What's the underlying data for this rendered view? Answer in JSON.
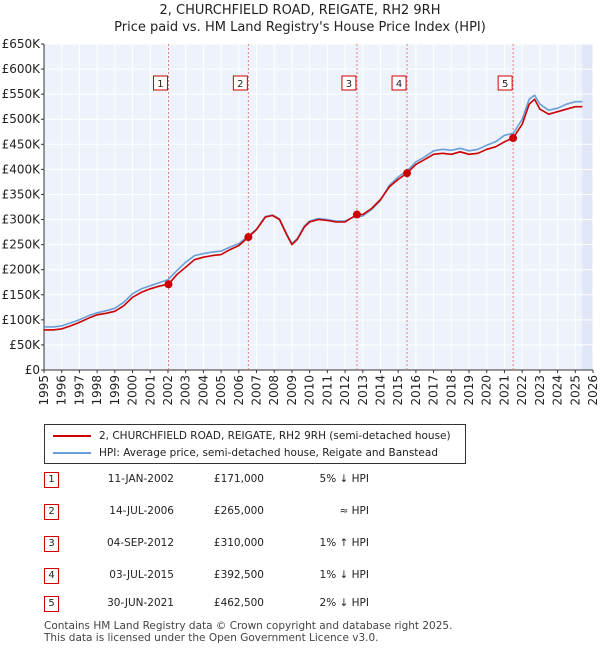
{
  "header": {
    "title_line1": "2, CHURCHFIELD ROAD, REIGATE, RH2 9RH",
    "title_line2": "Price paid vs. HM Land Registry's House Price Index (HPI)"
  },
  "colors": {
    "price_line": "#cc0000",
    "hpi_line": "#6a9fd8",
    "plot_bg": "#eef2fa",
    "shade": "#dfe6f5",
    "marker_border": "#cc0000",
    "vline": "#e08080"
  },
  "chart_data": {
    "type": "line",
    "title": "2, CHURCHFIELD ROAD, REIGATE, RH2 9RH",
    "subtitle": "Price paid vs. HM Land Registry's House Price Index (HPI)",
    "xlim": [
      1995,
      2026
    ],
    "ylim": [
      0,
      650000
    ],
    "x_ticks": [
      "1995",
      "1996",
      "1997",
      "1998",
      "1999",
      "2000",
      "2001",
      "2002",
      "2003",
      "2004",
      "2005",
      "2006",
      "2007",
      "2008",
      "2009",
      "2010",
      "2011",
      "2012",
      "2013",
      "2014",
      "2015",
      "2016",
      "2017",
      "2018",
      "2019",
      "2020",
      "2021",
      "2022",
      "2023",
      "2024",
      "2025",
      "2026"
    ],
    "y_ticks": [
      {
        "value": 0,
        "label": "£0"
      },
      {
        "value": 50000,
        "label": "£50K"
      },
      {
        "value": 100000,
        "label": "£100K"
      },
      {
        "value": 150000,
        "label": "£150K"
      },
      {
        "value": 200000,
        "label": "£200K"
      },
      {
        "value": 250000,
        "label": "£250K"
      },
      {
        "value": 300000,
        "label": "£300K"
      },
      {
        "value": 350000,
        "label": "£350K"
      },
      {
        "value": 400000,
        "label": "£400K"
      },
      {
        "value": 450000,
        "label": "£450K"
      },
      {
        "value": 500000,
        "label": "£500K"
      },
      {
        "value": 550000,
        "label": "£550K"
      },
      {
        "value": 600000,
        "label": "£600K"
      },
      {
        "value": 650000,
        "label": "£650K"
      }
    ],
    "shaded_future_from": 2025.4,
    "series": [
      {
        "name": "2, CHURCHFIELD ROAD, REIGATE, RH2 9RH (semi-detached house)",
        "color": "#cc0000",
        "x": [
          1995.0,
          1995.5,
          1996.0,
          1996.5,
          1997.0,
          1997.5,
          1998.0,
          1998.5,
          1999.0,
          1999.5,
          2000.0,
          2000.5,
          2001.0,
          2001.5,
          2002.03,
          2002.5,
          2003.0,
          2003.5,
          2004.0,
          2004.5,
          2005.0,
          2005.5,
          2006.0,
          2006.54,
          2007.0,
          2007.5,
          2007.9,
          2008.3,
          2008.7,
          2009.0,
          2009.3,
          2009.7,
          2010.0,
          2010.5,
          2011.0,
          2011.5,
          2012.0,
          2012.67,
          2013.0,
          2013.5,
          2014.0,
          2014.5,
          2015.0,
          2015.5,
          2016.0,
          2016.5,
          2017.0,
          2017.5,
          2018.0,
          2018.5,
          2019.0,
          2019.5,
          2020.0,
          2020.5,
          2021.0,
          2021.49,
          2022.0,
          2022.4,
          2022.7,
          2023.0,
          2023.5,
          2024.0,
          2024.5,
          2025.0,
          2025.4
        ],
        "y": [
          80000,
          80000,
          82000,
          88000,
          95000,
          103000,
          110000,
          113000,
          117000,
          128000,
          145000,
          155000,
          162000,
          167000,
          171000,
          190000,
          205000,
          220000,
          225000,
          228000,
          230000,
          240000,
          248000,
          265000,
          280000,
          305000,
          308000,
          300000,
          270000,
          250000,
          260000,
          285000,
          295000,
          300000,
          298000,
          295000,
          295000,
          310000,
          310000,
          322000,
          340000,
          365000,
          380000,
          392500,
          410000,
          420000,
          430000,
          432000,
          430000,
          435000,
          430000,
          432000,
          440000,
          445000,
          455000,
          462500,
          490000,
          530000,
          540000,
          520000,
          510000,
          515000,
          520000,
          525000,
          525000
        ]
      },
      {
        "name": "HPI: Average price, semi-detached house, Reigate and Banstead",
        "color": "#6a9fd8",
        "x": [
          1995.0,
          1995.5,
          1996.0,
          1996.5,
          1997.0,
          1997.5,
          1998.0,
          1998.5,
          1999.0,
          1999.5,
          2000.0,
          2000.5,
          2001.0,
          2001.5,
          2002.0,
          2002.5,
          2003.0,
          2003.5,
          2004.0,
          2004.5,
          2005.0,
          2005.5,
          2006.0,
          2006.5,
          2007.0,
          2007.5,
          2007.9,
          2008.3,
          2008.7,
          2009.0,
          2009.3,
          2009.7,
          2010.0,
          2010.5,
          2011.0,
          2011.5,
          2012.0,
          2012.5,
          2013.0,
          2013.5,
          2014.0,
          2014.5,
          2015.0,
          2015.5,
          2016.0,
          2016.5,
          2017.0,
          2017.5,
          2018.0,
          2018.5,
          2019.0,
          2019.5,
          2020.0,
          2020.5,
          2021.0,
          2021.5,
          2022.0,
          2022.4,
          2022.7,
          2023.0,
          2023.5,
          2024.0,
          2024.5,
          2025.0,
          2025.4
        ],
        "y": [
          86000,
          86000,
          88000,
          94000,
          100000,
          108000,
          114000,
          118000,
          123000,
          135000,
          152000,
          162000,
          168000,
          174000,
          180000,
          198000,
          215000,
          228000,
          232000,
          235000,
          237000,
          245000,
          252000,
          266000,
          281000,
          306000,
          309000,
          301000,
          272000,
          252000,
          262000,
          287000,
          297000,
          302000,
          300000,
          297000,
          297000,
          305000,
          307000,
          320000,
          338000,
          368000,
          385000,
          397000,
          415000,
          425000,
          437000,
          440000,
          438000,
          442000,
          437000,
          440000,
          448000,
          455000,
          468000,
          472000,
          500000,
          540000,
          548000,
          530000,
          518000,
          522000,
          530000,
          535000,
          535000
        ]
      }
    ],
    "sales": [
      {
        "n": "1",
        "x": 2002.03,
        "y": 171000
      },
      {
        "n": "2",
        "x": 2006.54,
        "y": 265000
      },
      {
        "n": "3",
        "x": 2012.67,
        "y": 310000
      },
      {
        "n": "4",
        "x": 2015.5,
        "y": 392500
      },
      {
        "n": "5",
        "x": 2021.49,
        "y": 462500
      }
    ]
  },
  "legend": {
    "price_label": "2, CHURCHFIELD ROAD, REIGATE, RH2 9RH (semi-detached house)",
    "hpi_label": "HPI: Average price, semi-detached house, Reigate and Banstead"
  },
  "sales_table": [
    {
      "n": "1",
      "date": "11-JAN-2002",
      "price": "£171,000",
      "rel": "5% ↓ HPI"
    },
    {
      "n": "2",
      "date": "14-JUL-2006",
      "price": "£265,000",
      "rel": "≈ HPI"
    },
    {
      "n": "3",
      "date": "04-SEP-2012",
      "price": "£310,000",
      "rel": "1% ↑ HPI"
    },
    {
      "n": "4",
      "date": "03-JUL-2015",
      "price": "£392,500",
      "rel": "1% ↓ HPI"
    },
    {
      "n": "5",
      "date": "30-JUN-2021",
      "price": "£462,500",
      "rel": "2% ↓ HPI"
    }
  ],
  "footer": {
    "line1": "Contains HM Land Registry data © Crown copyright and database right 2025.",
    "line2": "This data is licensed under the Open Government Licence v3.0."
  }
}
